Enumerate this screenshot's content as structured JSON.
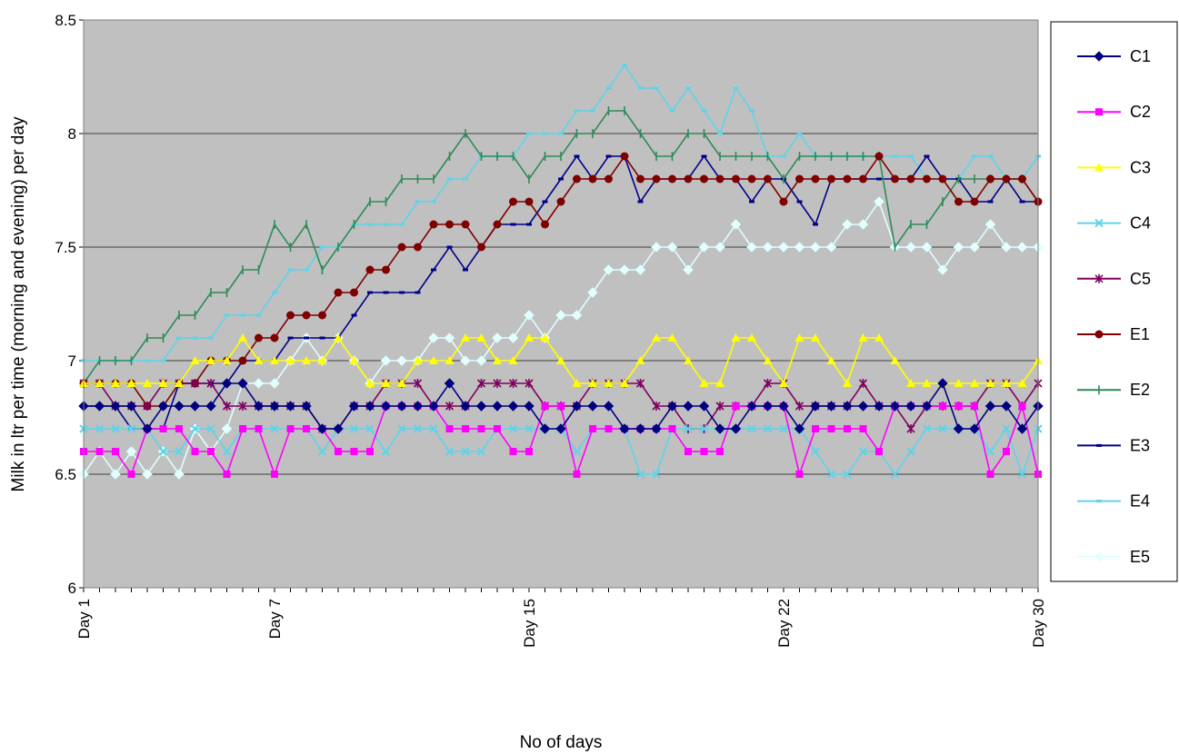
{
  "chart_data": {
    "type": "line",
    "title": "",
    "xlabel": "No of days",
    "ylabel": "Milk in ltr per time (morning and evening) per day",
    "ylim": [
      6,
      8.5
    ],
    "yticks": [
      "6",
      "6.5",
      "7",
      "7.5",
      "8",
      "8.5"
    ],
    "xticks": [
      {
        "index": 0,
        "label": "Day 1"
      },
      {
        "index": 12,
        "label": "Day 7"
      },
      {
        "index": 28,
        "label": "Day 15"
      },
      {
        "index": 44,
        "label": "Day 22"
      },
      {
        "index": 60,
        "label": "Day 30"
      }
    ],
    "point_count": 61,
    "grid": "horizontal",
    "legend_position": "right",
    "plot_background": "#c0c0c0",
    "series": [
      {
        "name": "C1",
        "color": "#000080",
        "marker": "diamond",
        "values": [
          6.8,
          6.8,
          6.8,
          6.8,
          6.7,
          6.8,
          6.8,
          6.8,
          6.8,
          6.9,
          6.9,
          6.8,
          6.8,
          6.8,
          6.8,
          6.7,
          6.7,
          6.8,
          6.8,
          6.8,
          6.8,
          6.8,
          6.8,
          6.9,
          6.8,
          6.8,
          6.8,
          6.8,
          6.8,
          6.7,
          6.7,
          6.8,
          6.8,
          6.8,
          6.7,
          6.7,
          6.7,
          6.8,
          6.8,
          6.8,
          6.7,
          6.7,
          6.8,
          6.8,
          6.8,
          6.7,
          6.8,
          6.8,
          6.8,
          6.8,
          6.8,
          6.8,
          6.8,
          6.8,
          6.9,
          6.7,
          6.7,
          6.8,
          6.8,
          6.7,
          6.8
        ]
      },
      {
        "name": "C2",
        "color": "#ff00ff",
        "marker": "square",
        "values": [
          6.6,
          6.6,
          6.6,
          6.5,
          6.7,
          6.7,
          6.7,
          6.6,
          6.6,
          6.5,
          6.7,
          6.7,
          6.5,
          6.7,
          6.7,
          6.7,
          6.6,
          6.6,
          6.6,
          6.8,
          6.8,
          6.8,
          6.8,
          6.7,
          6.7,
          6.7,
          6.7,
          6.6,
          6.6,
          6.8,
          6.8,
          6.5,
          6.7,
          6.7,
          6.7,
          6.7,
          6.7,
          6.7,
          6.6,
          6.6,
          6.6,
          6.8,
          6.8,
          6.8,
          6.8,
          6.5,
          6.7,
          6.7,
          6.7,
          6.7,
          6.6,
          6.8,
          6.8,
          6.8,
          6.8,
          6.8,
          6.8,
          6.5,
          6.6,
          6.8,
          6.5
        ]
      },
      {
        "name": "C3",
        "color": "#ffff00",
        "marker": "triangle",
        "values": [
          6.9,
          6.9,
          6.9,
          6.9,
          6.9,
          6.9,
          6.9,
          7.0,
          7.0,
          7.0,
          7.1,
          7.0,
          7.0,
          7.0,
          7.0,
          7.0,
          7.1,
          7.0,
          6.9,
          6.9,
          6.9,
          7.0,
          7.0,
          7.0,
          7.1,
          7.1,
          7.0,
          7.0,
          7.1,
          7.1,
          7.0,
          6.9,
          6.9,
          6.9,
          6.9,
          7.0,
          7.1,
          7.1,
          7.0,
          6.9,
          6.9,
          7.1,
          7.1,
          7.0,
          6.9,
          7.1,
          7.1,
          7.0,
          6.9,
          7.1,
          7.1,
          7.0,
          6.9,
          6.9,
          6.9,
          6.9,
          6.9,
          6.9,
          6.9,
          6.9,
          7.0
        ]
      },
      {
        "name": "C4",
        "color": "#5fd3e8",
        "marker": "x",
        "values": [
          6.7,
          6.7,
          6.7,
          6.7,
          6.7,
          6.6,
          6.6,
          6.7,
          6.7,
          6.6,
          6.7,
          6.7,
          6.7,
          6.7,
          6.7,
          6.6,
          6.7,
          6.7,
          6.7,
          6.6,
          6.7,
          6.7,
          6.7,
          6.6,
          6.6,
          6.6,
          6.7,
          6.7,
          6.7,
          6.7,
          6.7,
          6.6,
          6.7,
          6.7,
          6.7,
          6.5,
          6.5,
          6.7,
          6.7,
          6.7,
          6.7,
          6.7,
          6.7,
          6.7,
          6.7,
          6.7,
          6.6,
          6.5,
          6.5,
          6.6,
          6.6,
          6.5,
          6.6,
          6.7,
          6.7,
          6.7,
          6.7,
          6.6,
          6.7,
          6.5,
          6.7
        ]
      },
      {
        "name": "C5",
        "color": "#800060",
        "marker": "star",
        "values": [
          6.9,
          6.9,
          6.8,
          6.8,
          6.8,
          6.9,
          6.9,
          6.9,
          6.9,
          6.8,
          6.8,
          6.8,
          6.8,
          6.8,
          6.8,
          6.7,
          6.7,
          6.8,
          6.8,
          6.9,
          6.9,
          6.9,
          6.8,
          6.8,
          6.8,
          6.9,
          6.9,
          6.9,
          6.9,
          6.8,
          6.8,
          6.8,
          6.9,
          6.9,
          6.9,
          6.9,
          6.8,
          6.8,
          6.7,
          6.7,
          6.8,
          6.8,
          6.8,
          6.9,
          6.9,
          6.8,
          6.8,
          6.8,
          6.8,
          6.9,
          6.8,
          6.8,
          6.7,
          6.8,
          6.8,
          6.8,
          6.8,
          6.9,
          6.9,
          6.8,
          6.9
        ]
      },
      {
        "name": "E1",
        "color": "#800000",
        "marker": "circle",
        "values": [
          6.9,
          6.9,
          6.9,
          6.9,
          6.8,
          6.8,
          6.9,
          6.9,
          7.0,
          7.0,
          7.0,
          7.1,
          7.1,
          7.2,
          7.2,
          7.2,
          7.3,
          7.3,
          7.4,
          7.4,
          7.5,
          7.5,
          7.6,
          7.6,
          7.6,
          7.5,
          7.6,
          7.7,
          7.7,
          7.6,
          7.7,
          7.8,
          7.8,
          7.8,
          7.9,
          7.8,
          7.8,
          7.8,
          7.8,
          7.8,
          7.8,
          7.8,
          7.8,
          7.8,
          7.7,
          7.8,
          7.8,
          7.8,
          7.8,
          7.8,
          7.9,
          7.8,
          7.8,
          7.8,
          7.8,
          7.7,
          7.7,
          7.8,
          7.8,
          7.8,
          7.7
        ]
      },
      {
        "name": "E2",
        "color": "#2e8b57",
        "marker": "plus",
        "values": [
          6.9,
          7.0,
          7.0,
          7.0,
          7.1,
          7.1,
          7.2,
          7.2,
          7.3,
          7.3,
          7.4,
          7.4,
          7.6,
          7.5,
          7.6,
          7.4,
          7.5,
          7.6,
          7.7,
          7.7,
          7.8,
          7.8,
          7.8,
          7.9,
          8.0,
          7.9,
          7.9,
          7.9,
          7.8,
          7.9,
          7.9,
          8.0,
          8.0,
          8.1,
          8.1,
          8.0,
          7.9,
          7.9,
          8.0,
          8.0,
          7.9,
          7.9,
          7.9,
          7.9,
          7.8,
          7.9,
          7.9,
          7.9,
          7.9,
          7.9,
          7.9,
          7.5,
          7.6,
          7.6,
          7.7,
          7.8,
          7.8,
          7.8,
          7.8,
          7.8,
          7.7
        ]
      },
      {
        "name": "E3",
        "color": "#00008b",
        "marker": "dash",
        "values": [
          6.8,
          6.8,
          6.8,
          6.7,
          6.7,
          6.7,
          6.9,
          6.9,
          6.9,
          6.9,
          7.0,
          7.0,
          7.0,
          7.1,
          7.1,
          7.1,
          7.1,
          7.2,
          7.3,
          7.3,
          7.3,
          7.3,
          7.4,
          7.5,
          7.4,
          7.5,
          7.6,
          7.6,
          7.6,
          7.7,
          7.8,
          7.9,
          7.8,
          7.9,
          7.9,
          7.7,
          7.8,
          7.8,
          7.8,
          7.9,
          7.8,
          7.8,
          7.7,
          7.8,
          7.8,
          7.7,
          7.6,
          7.8,
          7.8,
          7.8,
          7.8,
          7.8,
          7.8,
          7.9,
          7.8,
          7.8,
          7.7,
          7.7,
          7.8,
          7.7,
          7.7
        ]
      },
      {
        "name": "E4",
        "color": "#5fd3e8",
        "marker": "dash",
        "values": [
          7.0,
          7.0,
          7.0,
          7.0,
          7.0,
          7.0,
          7.1,
          7.1,
          7.1,
          7.2,
          7.2,
          7.2,
          7.3,
          7.4,
          7.4,
          7.5,
          7.5,
          7.6,
          7.6,
          7.6,
          7.6,
          7.7,
          7.7,
          7.8,
          7.8,
          7.9,
          7.9,
          7.9,
          8.0,
          8.0,
          8.0,
          8.1,
          8.1,
          8.2,
          8.3,
          8.2,
          8.2,
          8.1,
          8.2,
          8.1,
          8.0,
          8.2,
          8.1,
          7.9,
          7.9,
          8.0,
          7.9,
          7.9,
          7.9,
          7.9,
          7.9,
          7.9,
          7.9,
          7.8,
          7.8,
          7.8,
          7.9,
          7.9,
          7.8,
          7.8,
          7.9
        ]
      },
      {
        "name": "E5",
        "color": "#e0ffff",
        "marker": "diamond",
        "values": [
          6.5,
          6.6,
          6.5,
          6.6,
          6.5,
          6.6,
          6.5,
          6.7,
          6.6,
          6.7,
          6.9,
          6.9,
          6.9,
          7.0,
          7.1,
          7.0,
          7.1,
          7.0,
          6.9,
          7.0,
          7.0,
          7.0,
          7.1,
          7.1,
          7.0,
          7.0,
          7.1,
          7.1,
          7.2,
          7.1,
          7.2,
          7.2,
          7.3,
          7.4,
          7.4,
          7.4,
          7.5,
          7.5,
          7.4,
          7.5,
          7.5,
          7.6,
          7.5,
          7.5,
          7.5,
          7.5,
          7.5,
          7.5,
          7.6,
          7.6,
          7.7,
          7.5,
          7.5,
          7.5,
          7.4,
          7.5,
          7.5,
          7.6,
          7.5,
          7.5,
          7.5
        ]
      }
    ]
  }
}
